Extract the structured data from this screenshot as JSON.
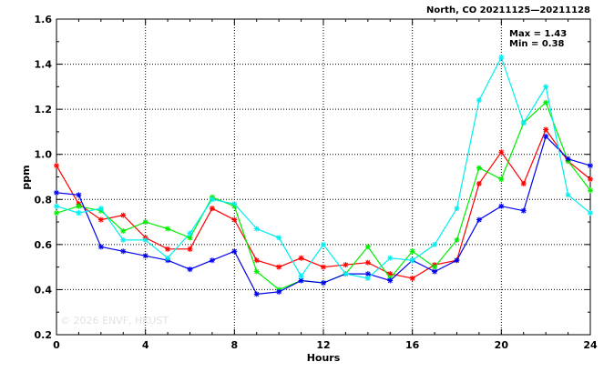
{
  "chart_data": {
    "type": "line",
    "title": "North, CO 20211125—20211128",
    "xlabel": "Hours",
    "ylabel": "ppm",
    "xlim": [
      0,
      24
    ],
    "ylim": [
      0.2,
      1.6
    ],
    "xticks": [
      0,
      4,
      8,
      12,
      16,
      20,
      24
    ],
    "yticks": [
      0.2,
      0.4,
      0.6,
      0.8,
      1.0,
      1.2,
      1.4,
      1.6
    ],
    "xtick_labels": [
      "0",
      "4",
      "8",
      "12",
      "16",
      "20",
      "24"
    ],
    "ytick_labels": [
      "0.2",
      "0.4",
      "0.6",
      "0.8",
      "1.0",
      "1.2",
      "1.4",
      "1.6"
    ],
    "grid": true,
    "max_label": "Max = 1.43",
    "min_label": "Min = 0.38",
    "watermark": "© 2026 ENVF, HKUST",
    "x": [
      0,
      1,
      2,
      3,
      4,
      5,
      6,
      7,
      8,
      9,
      10,
      11,
      12,
      13,
      14,
      15,
      16,
      17,
      18,
      19,
      20,
      21,
      22,
      23,
      24
    ],
    "series": [
      {
        "color": "#ff0000",
        "values": [
          0.95,
          0.78,
          0.71,
          0.73,
          0.63,
          0.58,
          0.58,
          0.76,
          0.71,
          0.53,
          0.5,
          0.54,
          0.5,
          0.51,
          0.52,
          0.47,
          0.45,
          0.51,
          0.53,
          0.87,
          1.01,
          0.87,
          1.11,
          0.97,
          0.89
        ]
      },
      {
        "color": "#00ee00",
        "values": [
          0.74,
          0.77,
          0.75,
          0.66,
          0.7,
          0.67,
          0.63,
          0.81,
          0.77,
          0.48,
          0.4,
          0.44,
          0.43,
          0.47,
          0.59,
          0.45,
          0.57,
          0.5,
          0.62,
          0.94,
          0.89,
          1.14,
          1.23,
          0.97,
          0.84
        ]
      },
      {
        "color": "#0000ee",
        "values": [
          0.83,
          0.82,
          0.59,
          0.57,
          0.55,
          0.53,
          0.49,
          0.53,
          0.57,
          0.38,
          0.39,
          0.44,
          0.43,
          0.47,
          0.47,
          0.44,
          0.53,
          0.48,
          0.53,
          0.71,
          0.77,
          0.75,
          1.08,
          0.98,
          0.95
        ]
      },
      {
        "color": "#00eeee",
        "values": [
          0.77,
          0.74,
          0.76,
          0.62,
          0.62,
          0.54,
          0.65,
          0.8,
          0.78,
          0.67,
          0.63,
          0.46,
          0.6,
          0.47,
          0.45,
          0.54,
          0.53,
          0.6,
          0.76,
          1.24,
          1.43,
          1.14,
          1.3,
          0.82,
          0.74
        ]
      }
    ]
  }
}
